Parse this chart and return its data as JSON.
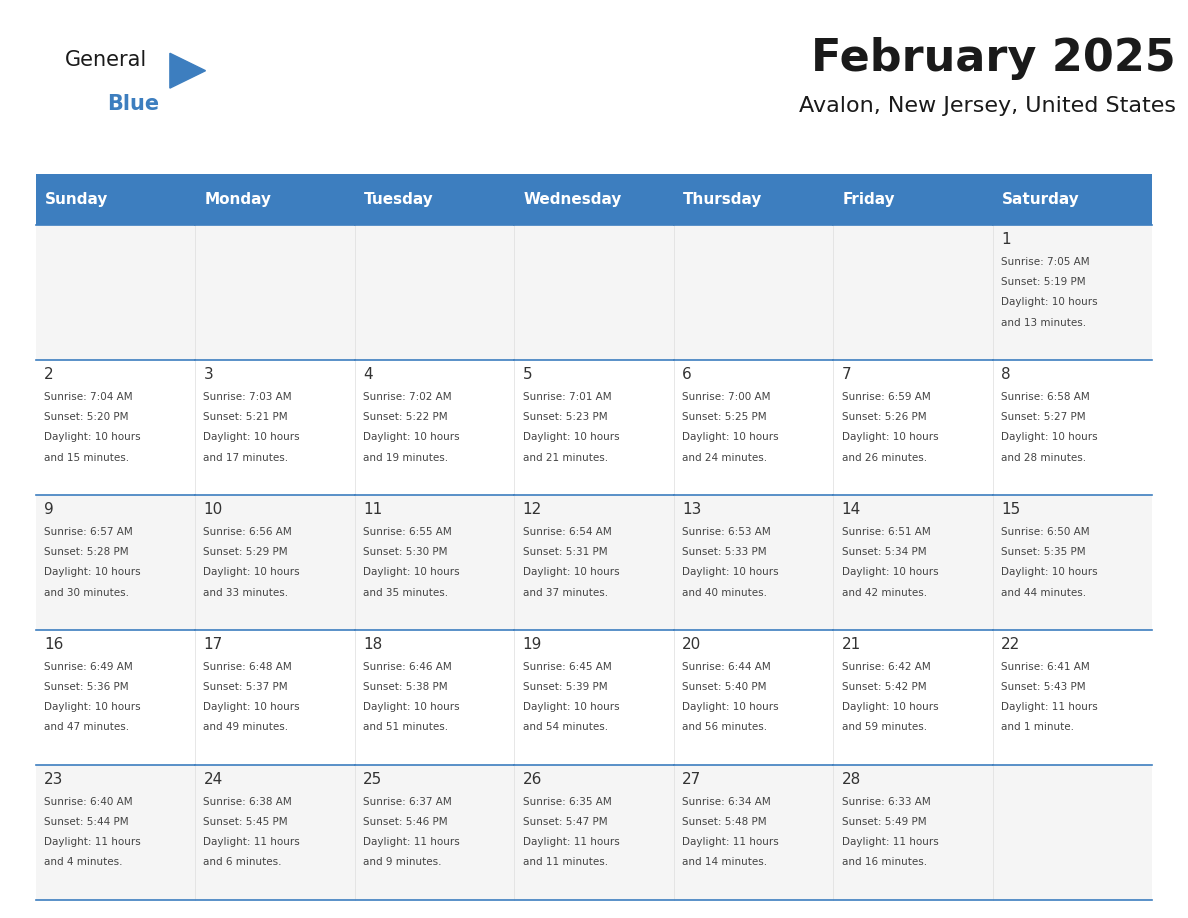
{
  "title": "February 2025",
  "subtitle": "Avalon, New Jersey, United States",
  "header_bg_color": "#3d7ebf",
  "header_text_color": "#ffffff",
  "border_color": "#3d7ebf",
  "text_color": "#333333",
  "day_headers": [
    "Sunday",
    "Monday",
    "Tuesday",
    "Wednesday",
    "Thursday",
    "Friday",
    "Saturday"
  ],
  "weeks": [
    [
      {
        "day": "",
        "info": ""
      },
      {
        "day": "",
        "info": ""
      },
      {
        "day": "",
        "info": ""
      },
      {
        "day": "",
        "info": ""
      },
      {
        "day": "",
        "info": ""
      },
      {
        "day": "",
        "info": ""
      },
      {
        "day": "1",
        "info": "Sunrise: 7:05 AM\nSunset: 5:19 PM\nDaylight: 10 hours\nand 13 minutes."
      }
    ],
    [
      {
        "day": "2",
        "info": "Sunrise: 7:04 AM\nSunset: 5:20 PM\nDaylight: 10 hours\nand 15 minutes."
      },
      {
        "day": "3",
        "info": "Sunrise: 7:03 AM\nSunset: 5:21 PM\nDaylight: 10 hours\nand 17 minutes."
      },
      {
        "day": "4",
        "info": "Sunrise: 7:02 AM\nSunset: 5:22 PM\nDaylight: 10 hours\nand 19 minutes."
      },
      {
        "day": "5",
        "info": "Sunrise: 7:01 AM\nSunset: 5:23 PM\nDaylight: 10 hours\nand 21 minutes."
      },
      {
        "day": "6",
        "info": "Sunrise: 7:00 AM\nSunset: 5:25 PM\nDaylight: 10 hours\nand 24 minutes."
      },
      {
        "day": "7",
        "info": "Sunrise: 6:59 AM\nSunset: 5:26 PM\nDaylight: 10 hours\nand 26 minutes."
      },
      {
        "day": "8",
        "info": "Sunrise: 6:58 AM\nSunset: 5:27 PM\nDaylight: 10 hours\nand 28 minutes."
      }
    ],
    [
      {
        "day": "9",
        "info": "Sunrise: 6:57 AM\nSunset: 5:28 PM\nDaylight: 10 hours\nand 30 minutes."
      },
      {
        "day": "10",
        "info": "Sunrise: 6:56 AM\nSunset: 5:29 PM\nDaylight: 10 hours\nand 33 minutes."
      },
      {
        "day": "11",
        "info": "Sunrise: 6:55 AM\nSunset: 5:30 PM\nDaylight: 10 hours\nand 35 minutes."
      },
      {
        "day": "12",
        "info": "Sunrise: 6:54 AM\nSunset: 5:31 PM\nDaylight: 10 hours\nand 37 minutes."
      },
      {
        "day": "13",
        "info": "Sunrise: 6:53 AM\nSunset: 5:33 PM\nDaylight: 10 hours\nand 40 minutes."
      },
      {
        "day": "14",
        "info": "Sunrise: 6:51 AM\nSunset: 5:34 PM\nDaylight: 10 hours\nand 42 minutes."
      },
      {
        "day": "15",
        "info": "Sunrise: 6:50 AM\nSunset: 5:35 PM\nDaylight: 10 hours\nand 44 minutes."
      }
    ],
    [
      {
        "day": "16",
        "info": "Sunrise: 6:49 AM\nSunset: 5:36 PM\nDaylight: 10 hours\nand 47 minutes."
      },
      {
        "day": "17",
        "info": "Sunrise: 6:48 AM\nSunset: 5:37 PM\nDaylight: 10 hours\nand 49 minutes."
      },
      {
        "day": "18",
        "info": "Sunrise: 6:46 AM\nSunset: 5:38 PM\nDaylight: 10 hours\nand 51 minutes."
      },
      {
        "day": "19",
        "info": "Sunrise: 6:45 AM\nSunset: 5:39 PM\nDaylight: 10 hours\nand 54 minutes."
      },
      {
        "day": "20",
        "info": "Sunrise: 6:44 AM\nSunset: 5:40 PM\nDaylight: 10 hours\nand 56 minutes."
      },
      {
        "day": "21",
        "info": "Sunrise: 6:42 AM\nSunset: 5:42 PM\nDaylight: 10 hours\nand 59 minutes."
      },
      {
        "day": "22",
        "info": "Sunrise: 6:41 AM\nSunset: 5:43 PM\nDaylight: 11 hours\nand 1 minute."
      }
    ],
    [
      {
        "day": "23",
        "info": "Sunrise: 6:40 AM\nSunset: 5:44 PM\nDaylight: 11 hours\nand 4 minutes."
      },
      {
        "day": "24",
        "info": "Sunrise: 6:38 AM\nSunset: 5:45 PM\nDaylight: 11 hours\nand 6 minutes."
      },
      {
        "day": "25",
        "info": "Sunrise: 6:37 AM\nSunset: 5:46 PM\nDaylight: 11 hours\nand 9 minutes."
      },
      {
        "day": "26",
        "info": "Sunrise: 6:35 AM\nSunset: 5:47 PM\nDaylight: 11 hours\nand 11 minutes."
      },
      {
        "day": "27",
        "info": "Sunrise: 6:34 AM\nSunset: 5:48 PM\nDaylight: 11 hours\nand 14 minutes."
      },
      {
        "day": "28",
        "info": "Sunrise: 6:33 AM\nSunset: 5:49 PM\nDaylight: 11 hours\nand 16 minutes."
      },
      {
        "day": "",
        "info": ""
      }
    ]
  ],
  "logo_text1": "General",
  "logo_text2": "Blue",
  "logo_triangle_color": "#3d7ebf"
}
